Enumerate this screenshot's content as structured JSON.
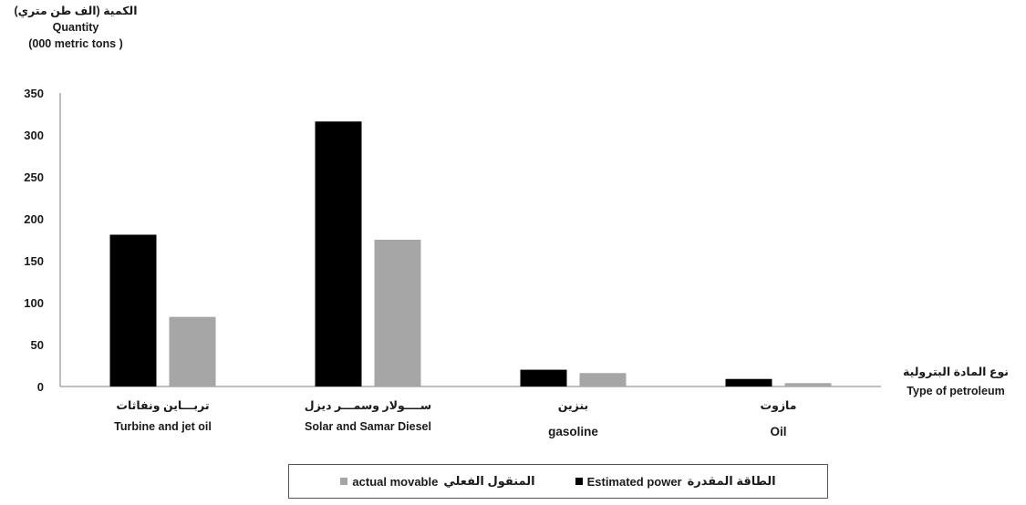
{
  "chart_data": {
    "type": "bar",
    "categories": [
      {
        "ar": "تربـــاين ونفاثات",
        "en": "Turbine and jet oil"
      },
      {
        "ar": "ســــولار وسمـــر ديزل",
        "en": "Solar and Samar Diesel"
      },
      {
        "ar": "بنزين",
        "en": "gasoline"
      },
      {
        "ar": "مازوت",
        "en": "Oil"
      }
    ],
    "series": [
      {
        "name_en": "Estimated power",
        "name_ar": "الطاقة المقدرة",
        "color": "#000000",
        "values": [
          181,
          316,
          20,
          9
        ]
      },
      {
        "name_en": "actual movable",
        "name_ar": "المنقول الفعلي",
        "color": "#a6a6a6",
        "values": [
          83,
          175,
          16,
          4
        ]
      }
    ],
    "ylim": [
      0,
      350
    ],
    "yticks": [
      "0",
      "50",
      "100",
      "150",
      "200",
      "250",
      "300",
      "350"
    ],
    "ylabel": {
      "ar": "الكمية  (الف طن متري)",
      "en": "Quantity",
      "unit": "(000 metric tons )"
    },
    "xlabel": {
      "ar": "نوع المادة البترولية",
      "en": "Type of petroleum"
    },
    "grid": false,
    "legend_position": "bottom"
  }
}
